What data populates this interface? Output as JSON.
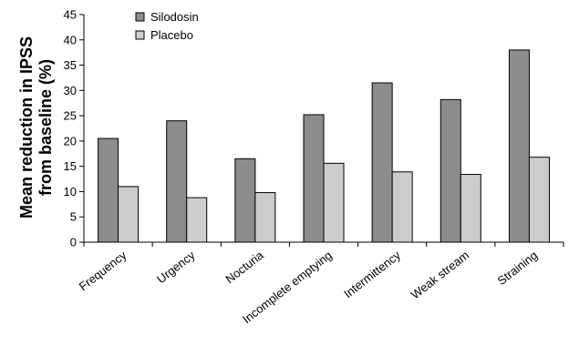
{
  "chart_data": {
    "type": "bar",
    "title": "",
    "xlabel": "",
    "ylabel_lines": [
      "Mean reduction in IPSS",
      "from baseline (%)"
    ],
    "ylim": [
      0,
      45
    ],
    "yticks": [
      0,
      5,
      10,
      15,
      20,
      25,
      30,
      35,
      40,
      45
    ],
    "categories": [
      "Frequency",
      "Urgency",
      "Nocturia",
      "Incomplete emptying",
      "Intermittency",
      "Weak stream",
      "Straining"
    ],
    "series": [
      {
        "name": "Silodosin",
        "color": "#8c8c8c",
        "values": [
          20.5,
          24.0,
          16.5,
          25.2,
          31.5,
          28.2,
          38.0
        ]
      },
      {
        "name": "Placebo",
        "color": "#cccccc",
        "values": [
          11.0,
          8.8,
          9.8,
          15.6,
          13.9,
          13.4,
          16.8
        ]
      }
    ],
    "grid": false,
    "legend_position": "top-left"
  }
}
